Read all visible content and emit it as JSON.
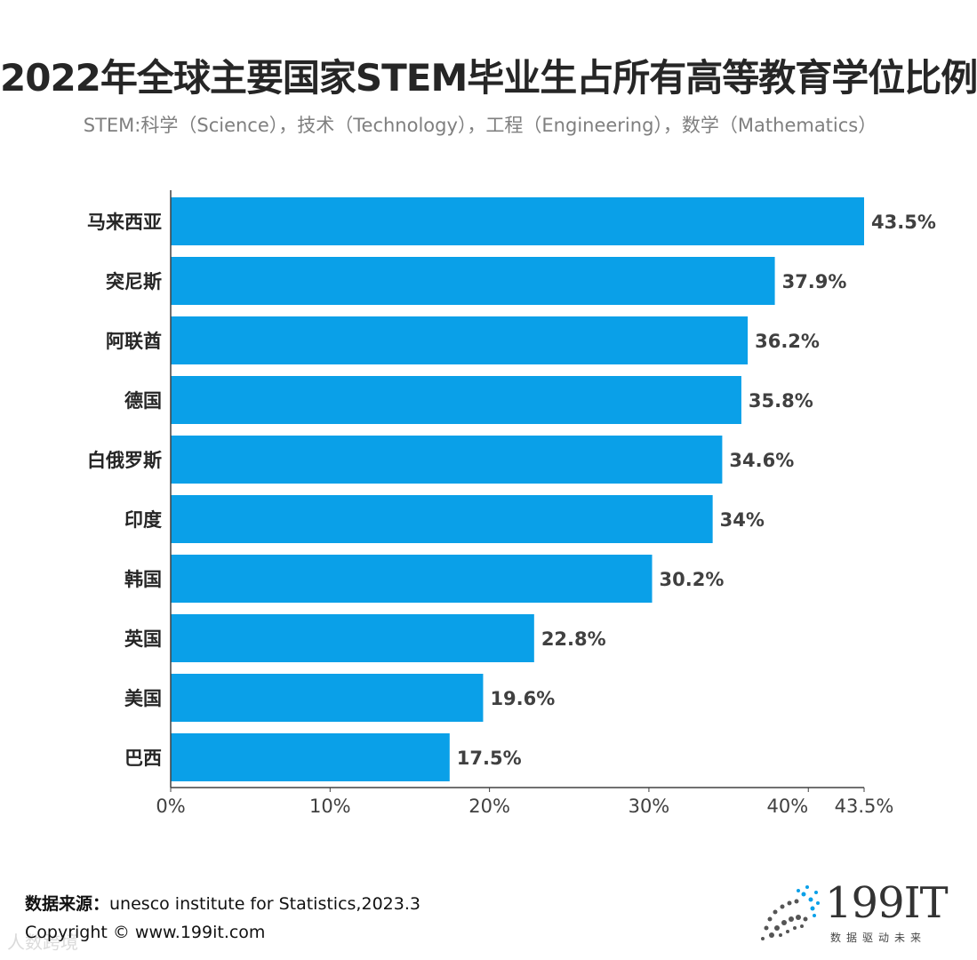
{
  "title": "2022年全球主要国家STEM毕业生占所有高等教育学位比例",
  "subtitle": "STEM:科学（Science），技术（Technology），工程（Engineering），数学（Mathematics）",
  "source_label": "数据来源：",
  "source_text": "unesco institute for Statistics,2023.3",
  "copyright": "Copyright © www.199it.com",
  "watermark": "人数跨境",
  "logo": {
    "name": "199IT",
    "tagline": "数据驱动未来"
  },
  "colors": {
    "bar": "#0aa0e8",
    "axis": "#404040"
  },
  "chart_data": {
    "type": "bar",
    "orientation": "horizontal",
    "title": "2022年全球主要国家STEM毕业生占所有高等教育学位比例",
    "categories": [
      "马来西亚",
      "突尼斯",
      "阿联酋",
      "德国",
      "白俄罗斯",
      "印度",
      "韩国",
      "英国",
      "美国",
      "巴西"
    ],
    "values": [
      43.5,
      37.9,
      36.2,
      35.8,
      34.6,
      34,
      30.2,
      22.8,
      19.6,
      17.5
    ],
    "value_labels": [
      "43.5%",
      "37.9%",
      "36.2%",
      "35.8%",
      "34.6%",
      "34%",
      "30.2%",
      "22.8%",
      "19.6%",
      "17.5%"
    ],
    "xlim": [
      0,
      43.5
    ],
    "xticks": [
      0,
      10,
      20,
      30,
      40,
      43.5
    ],
    "xtick_labels": [
      "0%",
      "10%",
      "20%",
      "30%",
      "40%",
      "43.5%"
    ],
    "xlabel": "",
    "ylabel": "",
    "grid": false,
    "legend": "none"
  }
}
